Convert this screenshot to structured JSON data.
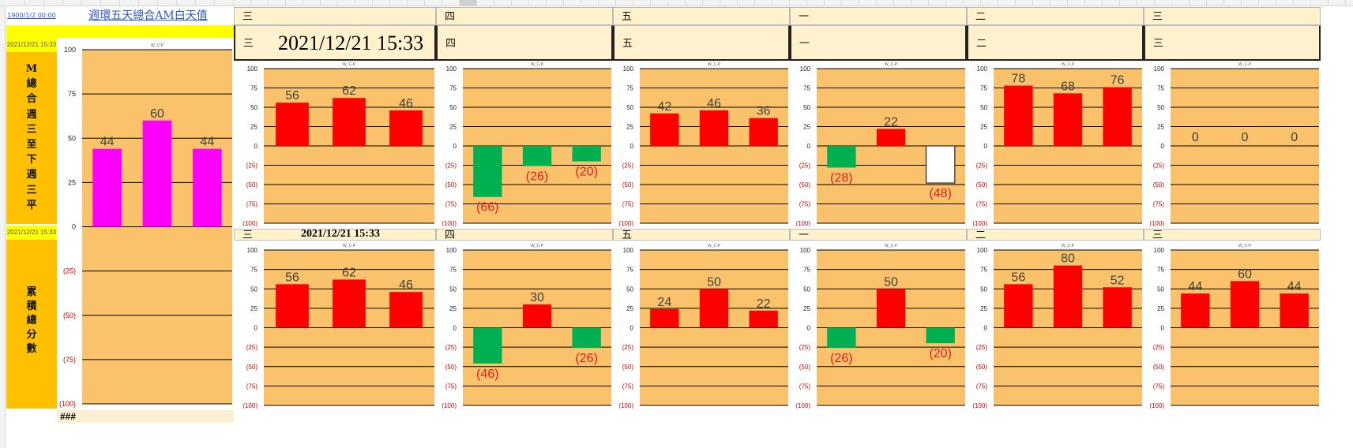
{
  "sheet": {
    "link_date": "1900/1/2 00:00",
    "link_title": "週環五天總合AM白天值",
    "timestamp": "2021/12/21 15:33",
    "left_label_top": [
      "M",
      "總",
      "合",
      "週",
      "三",
      "至",
      "下",
      "週",
      "三",
      "平"
    ],
    "left_label_bottom": [
      "累",
      "積",
      "總",
      "分",
      "數"
    ],
    "hash_cell": "###",
    "top_header_row1": [
      "三",
      "四",
      "五",
      "一",
      "二",
      "三"
    ],
    "top_header_row2": [
      "三",
      "四",
      "五",
      "一",
      "二",
      "三"
    ],
    "big_timestamp": "2021/12/21 15:33",
    "mid_header_row": [
      "三",
      "四",
      "五",
      "一",
      "二",
      "三"
    ],
    "mid_timestamp": "2021/12/21 15:33"
  },
  "colors": {
    "plot_bg": "#fac36b",
    "positive_bar": "#ff0000",
    "negative_bar": "#00b050",
    "summary_bar": "#ff00ff",
    "label_positive": "#404040",
    "label_negative": "#e11b1b",
    "header_fill": "#fff2cc",
    "yellow": "#ffff00",
    "orange": "#ffc000"
  },
  "chart_data": [
    {
      "id": "summary",
      "type": "bar",
      "title": "W_C-P",
      "ylim": [
        -100,
        100
      ],
      "yticks": [
        "100",
        "75",
        "50",
        "25",
        "0",
        "(25)",
        "(50)",
        "(75)",
        "(100)"
      ],
      "values": [
        44,
        60,
        44
      ],
      "labels": [
        "44",
        "60",
        "44"
      ],
      "bar_color": "#ff00ff"
    },
    {
      "id": "top-1",
      "type": "bar",
      "title": "W_C-P",
      "ylim": [
        -100,
        100
      ],
      "yticks": [
        "100",
        "75",
        "50",
        "25",
        "0",
        "(25)",
        "(50)",
        "(75)",
        "(100)"
      ],
      "values": [
        56,
        62,
        46
      ],
      "labels": [
        "56",
        "62",
        "46"
      ]
    },
    {
      "id": "top-2",
      "type": "bar",
      "title": "W_C-P",
      "ylim": [
        -100,
        100
      ],
      "yticks": [
        "100",
        "75",
        "50",
        "25",
        "0",
        "(25)",
        "(50)",
        "(75)",
        "(100)"
      ],
      "values": [
        -66,
        -26,
        -20
      ],
      "labels": [
        "(66)",
        "(26)",
        "(20)"
      ]
    },
    {
      "id": "top-3",
      "type": "bar",
      "title": "W_C-P",
      "ylim": [
        -100,
        100
      ],
      "yticks": [
        "100",
        "75",
        "50",
        "25",
        "0",
        "(25)",
        "(50)",
        "(75)",
        "(100)"
      ],
      "values": [
        42,
        46,
        36
      ],
      "labels": [
        "42",
        "46",
        "36"
      ]
    },
    {
      "id": "top-4",
      "type": "bar",
      "title": "W_C-P",
      "ylim": [
        -100,
        100
      ],
      "yticks": [
        "100",
        "75",
        "50",
        "25",
        "0",
        "(25)",
        "(50)",
        "(75)",
        "(100)"
      ],
      "values": [
        -28,
        22,
        -48
      ],
      "labels": [
        "(28)",
        "22",
        "(48)"
      ],
      "hollow": [
        false,
        false,
        true
      ]
    },
    {
      "id": "top-5",
      "type": "bar",
      "title": "W_C-P",
      "ylim": [
        -100,
        100
      ],
      "yticks": [
        "100",
        "75",
        "50",
        "25",
        "0",
        "(25)",
        "(50)",
        "(75)",
        "(100)"
      ],
      "values": [
        78,
        68,
        76
      ],
      "labels": [
        "78",
        "68",
        "76"
      ]
    },
    {
      "id": "top-6",
      "type": "bar",
      "title": "W_C-P",
      "ylim": [
        -100,
        100
      ],
      "yticks": [
        "100",
        "75",
        "50",
        "25",
        "0",
        "(25)",
        "(50)",
        "(75)",
        "(100)"
      ],
      "values": [
        0,
        0,
        0
      ],
      "labels": [
        "0",
        "0",
        "0"
      ]
    },
    {
      "id": "bot-1",
      "type": "bar",
      "title": "W_C-P",
      "ylim": [
        -100,
        100
      ],
      "yticks": [
        "100",
        "75",
        "50",
        "25",
        "0",
        "(25)",
        "(50)",
        "(75)",
        "(100)"
      ],
      "values": [
        56,
        62,
        46
      ],
      "labels": [
        "56",
        "62",
        "46"
      ]
    },
    {
      "id": "bot-2",
      "type": "bar",
      "title": "W_C-P",
      "ylim": [
        -100,
        100
      ],
      "yticks": [
        "100",
        "75",
        "50",
        "25",
        "0",
        "(25)",
        "(50)",
        "(75)",
        "(100)"
      ],
      "values": [
        -46,
        30,
        -26
      ],
      "labels": [
        "(46)",
        "30",
        "(26)"
      ]
    },
    {
      "id": "bot-3",
      "type": "bar",
      "title": "W_C-P",
      "ylim": [
        -100,
        100
      ],
      "yticks": [
        "100",
        "75",
        "50",
        "25",
        "0",
        "(25)",
        "(50)",
        "(75)",
        "(100)"
      ],
      "values": [
        24,
        50,
        22
      ],
      "labels": [
        "24",
        "50",
        "22"
      ]
    },
    {
      "id": "bot-4",
      "type": "bar",
      "title": "W_C-P",
      "ylim": [
        -100,
        100
      ],
      "yticks": [
        "100",
        "75",
        "50",
        "25",
        "0",
        "(25)",
        "(50)",
        "(75)",
        "(100)"
      ],
      "values": [
        -26,
        50,
        -20
      ],
      "labels": [
        "(26)",
        "50",
        "(20)"
      ]
    },
    {
      "id": "bot-5",
      "type": "bar",
      "title": "W_C-P",
      "ylim": [
        -100,
        100
      ],
      "yticks": [
        "100",
        "75",
        "50",
        "25",
        "0",
        "(25)",
        "(50)",
        "(75)",
        "(100)"
      ],
      "values": [
        56,
        80,
        52
      ],
      "labels": [
        "56",
        "80",
        "52"
      ]
    },
    {
      "id": "bot-6",
      "type": "bar",
      "title": "W_C-P",
      "ylim": [
        -100,
        100
      ],
      "yticks": [
        "100",
        "75",
        "50",
        "25",
        "0",
        "(25)",
        "(50)",
        "(75)",
        "(100)"
      ],
      "values": [
        44,
        60,
        44
      ],
      "labels": [
        "44",
        "60",
        "44"
      ]
    }
  ]
}
